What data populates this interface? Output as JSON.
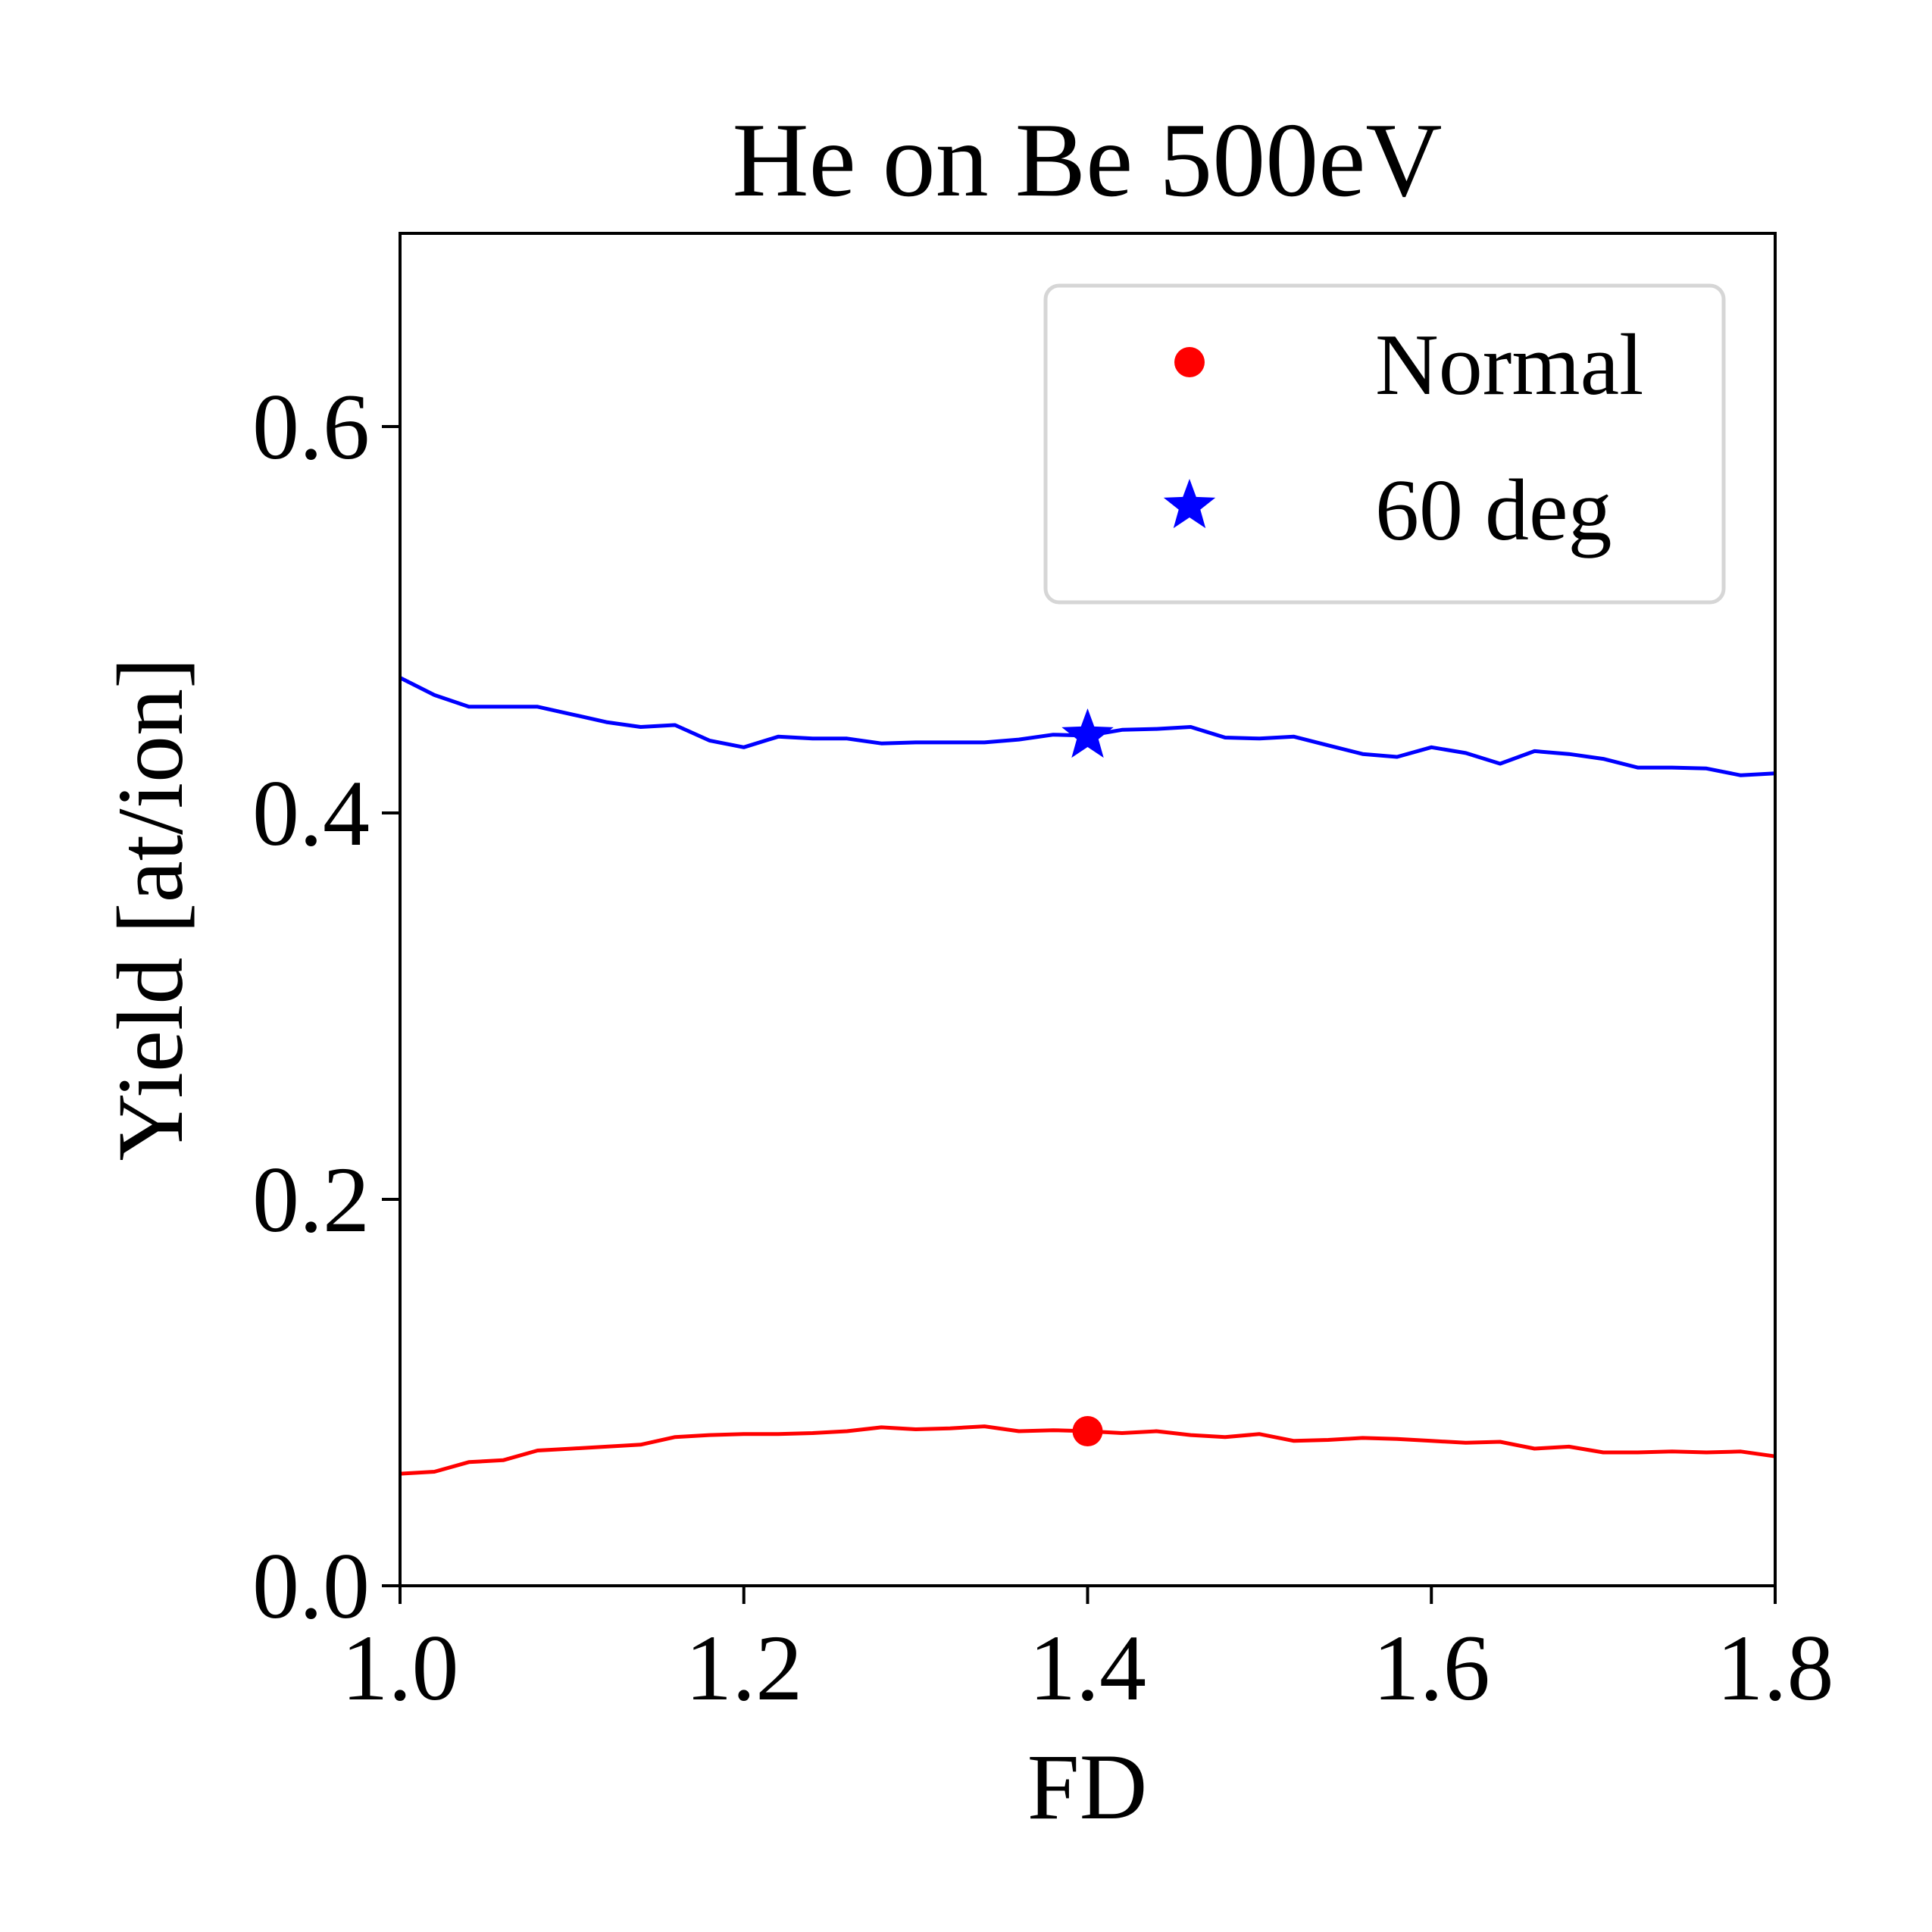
{
  "chart_data": {
    "type": "line",
    "title": "He on Be 500eV",
    "xlabel": "FD",
    "ylabel": "Yield [at/ion]",
    "xlim": [
      1.0,
      1.8
    ],
    "ylim": [
      0.0,
      0.7
    ],
    "xticks": [
      1.0,
      1.2,
      1.4,
      1.6,
      1.8
    ],
    "xtick_labels": [
      "1.0",
      "1.2",
      "1.4",
      "1.6",
      "1.8"
    ],
    "yticks": [
      0.0,
      0.2,
      0.4,
      0.6
    ],
    "ytick_labels": [
      "0.0",
      "0.2",
      "0.4",
      "0.6"
    ],
    "grid": false,
    "legend_position": "top-right",
    "x": [
      1.0,
      1.02,
      1.04,
      1.06,
      1.08,
      1.1,
      1.12,
      1.14,
      1.16,
      1.18,
      1.2,
      1.22,
      1.24,
      1.26,
      1.28,
      1.3,
      1.32,
      1.34,
      1.36,
      1.38,
      1.4,
      1.42,
      1.44,
      1.46,
      1.48,
      1.5,
      1.52,
      1.54,
      1.56,
      1.58,
      1.6,
      1.62,
      1.64,
      1.66,
      1.68,
      1.7,
      1.72,
      1.74,
      1.76,
      1.78,
      1.8
    ],
    "series": [
      {
        "name": "Normal",
        "color": "#ff0000",
        "marker": "circle",
        "marker_point": {
          "x": 1.4,
          "y": 0.08
        },
        "values": [
          0.058,
          0.059,
          0.064,
          0.065,
          0.07,
          0.071,
          0.072,
          0.073,
          0.077,
          0.078,
          0.0785,
          0.0785,
          0.079,
          0.08,
          0.082,
          0.081,
          0.0815,
          0.0825,
          0.08,
          0.0805,
          0.08,
          0.079,
          0.08,
          0.078,
          0.077,
          0.0785,
          0.075,
          0.0755,
          0.0765,
          0.076,
          0.075,
          0.074,
          0.0745,
          0.071,
          0.072,
          0.069,
          0.069,
          0.0695,
          0.069,
          0.0695,
          0.067
        ]
      },
      {
        "name": "60 deg",
        "color": "#0000ff",
        "marker": "star",
        "marker_point": {
          "x": 1.4,
          "y": 0.44
        },
        "values": [
          0.47,
          0.461,
          0.455,
          0.455,
          0.455,
          0.451,
          0.447,
          0.4445,
          0.4455,
          0.4375,
          0.434,
          0.4395,
          0.4385,
          0.4385,
          0.436,
          0.4365,
          0.4365,
          0.4365,
          0.438,
          0.4405,
          0.44,
          0.443,
          0.4435,
          0.4445,
          0.439,
          0.4385,
          0.4395,
          0.435,
          0.4305,
          0.429,
          0.434,
          0.431,
          0.4255,
          0.432,
          0.4305,
          0.428,
          0.4235,
          0.4235,
          0.423,
          0.4195,
          0.4205
        ]
      }
    ]
  }
}
